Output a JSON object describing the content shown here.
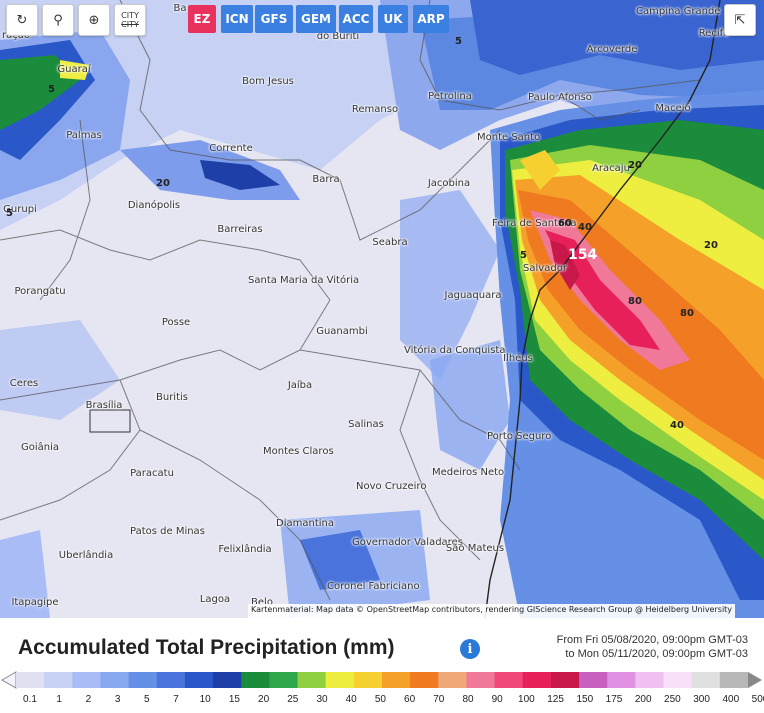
{
  "toolbar": {
    "refresh_icon": "refresh-icon",
    "pin_icon": "map-pin-icon",
    "zoom_icon": "zoom-icon",
    "city_label_top": "CITY",
    "city_label_bottom": "CITY",
    "share_icon": "share-icon"
  },
  "models": [
    "EZ",
    "ICN",
    "GFS",
    "GEM",
    "ACC",
    "UK",
    "ARP"
  ],
  "active_model": "EZ",
  "cities": [
    {
      "name": "Bom Jesus"
    },
    {
      "name": "Remanso"
    },
    {
      "name": "Petrolina"
    },
    {
      "name": "Paulo Afonso"
    },
    {
      "name": "Arcoverde"
    },
    {
      "name": "Campina Grande"
    },
    {
      "name": "Recife"
    },
    {
      "name": "Maceió"
    },
    {
      "name": "Aracaju"
    },
    {
      "name": "Guaraí"
    },
    {
      "name": "Palmas"
    },
    {
      "name": "Corrente"
    },
    {
      "name": "Barra"
    },
    {
      "name": "Jacobina"
    },
    {
      "name": "Monte Santo"
    },
    {
      "name": "Gurupi"
    },
    {
      "name": "Dianópolis"
    },
    {
      "name": "Barreiras"
    },
    {
      "name": "Seabra"
    },
    {
      "name": "Feira de Santana"
    },
    {
      "name": "Salvador"
    },
    {
      "name": "Porangatu"
    },
    {
      "name": "Santa Maria da Vitória"
    },
    {
      "name": "Posse"
    },
    {
      "name": "Guanambi"
    },
    {
      "name": "Jaguaquara"
    },
    {
      "name": "Vitória da Conquista"
    },
    {
      "name": "Ilhéus"
    },
    {
      "name": "Ceres"
    },
    {
      "name": "Brasília"
    },
    {
      "name": "Buritis"
    },
    {
      "name": "Jaíba"
    },
    {
      "name": "Salinas"
    },
    {
      "name": "Porto Seguro"
    },
    {
      "name": "Goiânia"
    },
    {
      "name": "Montes Claros"
    },
    {
      "name": "Medeiros Neto"
    },
    {
      "name": "Paracatu"
    },
    {
      "name": "Novo Cruzeiro"
    },
    {
      "name": "Diamantina"
    },
    {
      "name": "Patos de Minas"
    },
    {
      "name": "Felixlândia"
    },
    {
      "name": "Governador Valadares"
    },
    {
      "name": "São Mateus"
    },
    {
      "name": "Uberlândia"
    },
    {
      "name": "Coronel Fabriciano"
    },
    {
      "name": "Itapagipe"
    },
    {
      "name": "Lagoa"
    },
    {
      "name": "Belo"
    },
    {
      "name": "do Buriti"
    },
    {
      "name": "Ba"
    },
    {
      "name": "ração"
    }
  ],
  "contour_labels": [
    "5",
    "20",
    "5",
    "5",
    "154",
    "60",
    "40",
    "80",
    "80",
    "40",
    "20",
    "20",
    "5"
  ],
  "attribution": "Kartenmaterial: Map data © OpenStreetMap contributors, rendering GIScience Research Group @ Heidelberg University",
  "legend": {
    "title": "Accumulated Total Precipitation (mm)",
    "info_icon": "info-icon",
    "range_line1": "From Fri 05/08/2020, 09:00pm GMT-03",
    "range_line2": "to Mon 05/11/2020, 09:00pm GMT-03",
    "steps": [
      "0.1",
      "1",
      "2",
      "3",
      "5",
      "7",
      "10",
      "15",
      "20",
      "25",
      "30",
      "40",
      "50",
      "60",
      "70",
      "80",
      "90",
      "100",
      "125",
      "150",
      "175",
      "200",
      "250",
      "300",
      "400",
      "500"
    ],
    "colors": [
      "#e0e0f2",
      "#c8d2f5",
      "#aabcf5",
      "#88a8f0",
      "#6690e6",
      "#4a74dc",
      "#2a58c8",
      "#1e3fa8",
      "#1a8c3c",
      "#2ea84a",
      "#8fd040",
      "#eeee40",
      "#f5d030",
      "#f5a028",
      "#ef7a20",
      "#f0a878",
      "#f07898",
      "#f04878",
      "#e8205a",
      "#c8184a",
      "#c860c0",
      "#e090e0",
      "#f0c0f0",
      "#f8e0f8",
      "#e0e0e0",
      "#b8b8b8"
    ]
  }
}
